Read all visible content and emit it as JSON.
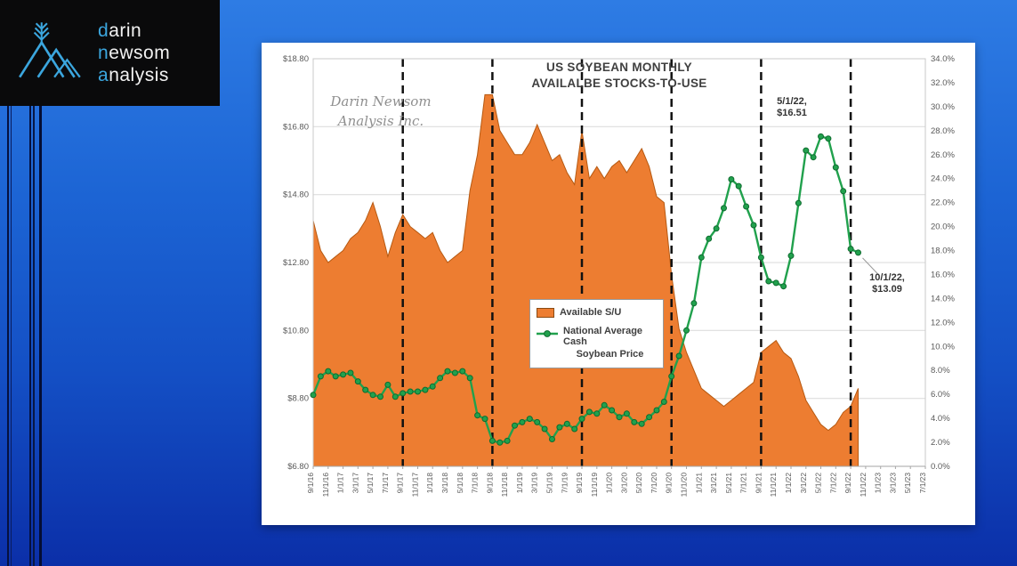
{
  "logo": {
    "brand_lines": [
      {
        "highlight": "d",
        "rest": "arin"
      },
      {
        "highlight": "n",
        "rest": "ewsom"
      },
      {
        "highlight": "a",
        "rest": "nalysis"
      }
    ],
    "highlight_color": "#3BA6DE"
  },
  "chart": {
    "title_line1": "US SOYBEAN MONTHLY",
    "title_line2": "AVAILALBE STOCKS-TO-USE",
    "watermark_line1": "Darin Newsom",
    "watermark_line2": "Analysis Inc.",
    "legend": {
      "area_label": "Available S/U",
      "line_label_1": "National Average Cash",
      "line_label_2": "Soybean Price"
    },
    "annotations": [
      {
        "line1": "5/1/22,",
        "line2": "$16.51"
      },
      {
        "line1": "10/1/22,",
        "line2": "$13.09"
      }
    ],
    "colors": {
      "area_fill": "#ED7D31",
      "area_stroke": "#B65911",
      "line": "#21A14D",
      "marker_fill": "#21A14D",
      "marker_stroke": "#0E6B2F",
      "gridline": "#d9d9d9",
      "dashed_line": "#111111",
      "axis_text": "#595959"
    }
  },
  "chart_data": {
    "type": "combo-area-line",
    "title": "US SOYBEAN MONTHLY AVAILALBE STOCKS-TO-USE",
    "x_axis": {
      "start_month": "9/1/16",
      "months_total": 83,
      "label_every_n_months": 2,
      "tick_labels": [
        "9/1/16",
        "11/1/16",
        "1/1/17",
        "3/1/17",
        "5/1/17",
        "7/1/17",
        "9/1/17",
        "11/1/17",
        "1/1/18",
        "3/1/18",
        "5/1/18",
        "7/1/18",
        "9/1/18",
        "11/1/18",
        "1/1/19",
        "3/1/19",
        "5/1/19",
        "7/1/19",
        "9/1/19",
        "11/1/19",
        "1/1/20",
        "3/1/20",
        "5/1/20",
        "7/1/20",
        "9/1/20",
        "11/1/20",
        "1/1/21",
        "3/1/21",
        "5/1/21",
        "7/1/21",
        "9/1/21",
        "11/1/21",
        "1/1/22",
        "3/1/22",
        "5/1/22",
        "7/1/22",
        "9/1/22",
        "11/1/22",
        "1/1/23",
        "3/1/23",
        "5/1/23",
        "7/1/23"
      ]
    },
    "left_axis": {
      "unit": "$",
      "min": 6.8,
      "max": 18.8,
      "step": 2.0,
      "tick_values": [
        6.8,
        8.8,
        10.8,
        12.8,
        14.8,
        16.8,
        18.8
      ],
      "tick_labels": [
        "$6.80",
        "$8.80",
        "$10.80",
        "$12.80",
        "$14.80",
        "$16.80",
        "$18.80"
      ]
    },
    "right_axis": {
      "unit": "%",
      "min": 0.0,
      "max": 34.0,
      "step": 2.0,
      "tick_labels": [
        "0.0%",
        "2.0%",
        "4.0%",
        "6.0%",
        "8.0%",
        "10.0%",
        "12.0%",
        "14.0%",
        "16.0%",
        "18.0%",
        "20.0%",
        "22.0%",
        "24.0%",
        "26.0%",
        "28.0%",
        "30.0%",
        "32.0%",
        "34.0%"
      ]
    },
    "dashed_vlines_at": [
      "9/1/17",
      "9/1/18",
      "9/1/19",
      "9/1/20",
      "9/1/21",
      "9/1/22"
    ],
    "series": [
      {
        "name": "Available S/U",
        "type": "area",
        "axis": "right",
        "unit": "%",
        "first_month": "9/1/16",
        "cadence": "monthly",
        "values": [
          20.5,
          18,
          17,
          17.5,
          18,
          19,
          19.5,
          20.5,
          22,
          20,
          17.5,
          19.5,
          21,
          20,
          19.5,
          19,
          19.5,
          18,
          17,
          17.5,
          18,
          23,
          26,
          31,
          31,
          28,
          27,
          26,
          26,
          27,
          28.5,
          27,
          25.5,
          26,
          24.5,
          23.5,
          28,
          24,
          25,
          24,
          25,
          25.5,
          24.5,
          25.5,
          26.5,
          25,
          22.5,
          22,
          16,
          11.5,
          9.5,
          8,
          6.5,
          6,
          5.5,
          5,
          5.5,
          6,
          6.5,
          7,
          9.5,
          10,
          10.5,
          9.5,
          9,
          7.5,
          5.5,
          4.5,
          3.5,
          3,
          3.5,
          4.5,
          5,
          6.5
        ]
      },
      {
        "name": "National Average Cash Soybean Price",
        "type": "line",
        "axis": "left",
        "unit": "$",
        "first_month": "9/1/16",
        "cadence": "monthly",
        "values": [
          8.9,
          9.45,
          9.6,
          9.45,
          9.5,
          9.55,
          9.3,
          9.05,
          8.9,
          8.85,
          9.2,
          8.85,
          8.95,
          9.0,
          9.0,
          9.05,
          9.15,
          9.4,
          9.6,
          9.55,
          9.6,
          9.4,
          8.3,
          8.2,
          7.55,
          7.5,
          7.55,
          8.0,
          8.1,
          8.2,
          8.1,
          7.9,
          7.6,
          7.95,
          8.05,
          7.9,
          8.2,
          8.4,
          8.35,
          8.6,
          8.45,
          8.25,
          8.35,
          8.1,
          8.05,
          8.25,
          8.45,
          8.7,
          9.45,
          10.05,
          10.8,
          11.6,
          12.95,
          13.5,
          13.8,
          14.4,
          15.25,
          15.05,
          14.45,
          13.9,
          12.95,
          12.25,
          12.2,
          12.1,
          13.0,
          14.55,
          16.1,
          15.9,
          16.51,
          16.45,
          15.6,
          14.9,
          13.2,
          13.09
        ]
      }
    ],
    "callouts": [
      {
        "month": "5/1/22",
        "value": 16.51,
        "text": "5/1/22, $16.51"
      },
      {
        "month": "10/1/22",
        "value": 13.09,
        "text": "10/1/22, $13.09"
      }
    ]
  }
}
